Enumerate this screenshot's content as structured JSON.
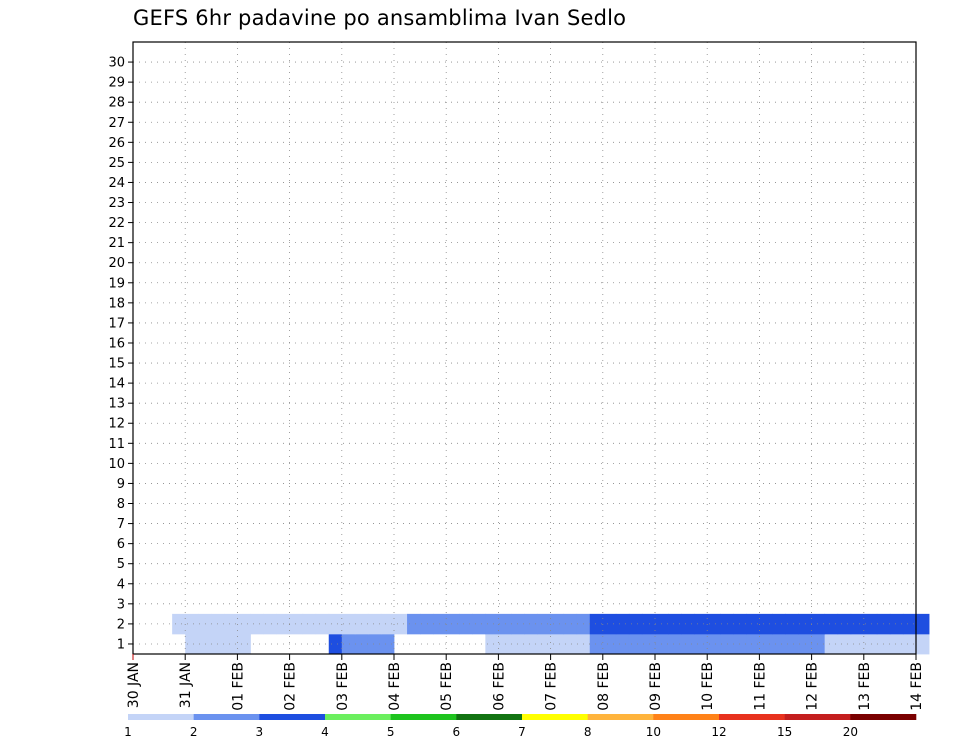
{
  "chart_data": {
    "type": "heatmap",
    "title": "GEFS 6hr padavine po ansamblima Ivan Sedlo",
    "xlabel": "",
    "ylabel": "",
    "x_tick_labels": [
      "30 JAN",
      "31 JAN",
      "01 FEB",
      "02 FEB",
      "03 FEB",
      "04 FEB",
      "05 FEB",
      "06 FEB",
      "07 FEB",
      "08 FEB",
      "09 FEB",
      "10 FEB",
      "11 FEB",
      "12 FEB",
      "13 FEB",
      "14 FEB"
    ],
    "members": [
      1,
      2,
      3,
      4,
      5,
      6,
      7,
      8,
      9,
      10,
      11,
      12,
      13,
      14,
      15,
      16,
      17,
      18,
      19,
      20,
      21,
      22,
      23,
      24,
      25,
      26,
      27,
      28,
      29,
      30
    ],
    "time_steps_per_day": 4,
    "grid": true,
    "legend": {
      "placement": "bottom",
      "boundaries": [
        "1",
        "2",
        "3",
        "4",
        "5",
        "6",
        "7",
        "8",
        "10",
        "12",
        "15",
        "20"
      ],
      "colors": [
        "#c4d4f7",
        "#6b92ef",
        "#1e4ee0",
        "#6bef5e",
        "#1ec41e",
        "#127312",
        "#ffff00",
        "#ffb43c",
        "#ff8218",
        "#e8321e",
        "#c41e1e",
        "#7a0000"
      ]
    },
    "cells": [
      [
        1,
        4,
        1
      ],
      [
        1,
        5,
        1
      ],
      [
        1,
        6,
        1
      ],
      [
        1,
        7,
        1
      ],
      [
        1,
        8,
        1
      ],
      [
        1,
        15,
        3
      ],
      [
        1,
        16,
        2
      ],
      [
        1,
        17,
        2
      ],
      [
        1,
        18,
        2
      ],
      [
        1,
        19,
        2
      ],
      [
        1,
        27,
        1
      ],
      [
        1,
        28,
        1
      ],
      [
        1,
        29,
        1
      ],
      [
        1,
        30,
        1
      ],
      [
        1,
        31,
        1
      ],
      [
        1,
        32,
        1
      ],
      [
        1,
        33,
        1
      ],
      [
        1,
        34,
        1
      ],
      [
        1,
        35,
        2
      ],
      [
        1,
        36,
        2
      ],
      [
        1,
        37,
        2
      ],
      [
        1,
        38,
        2
      ],
      [
        1,
        39,
        2
      ],
      [
        1,
        40,
        2
      ],
      [
        1,
        41,
        2
      ],
      [
        1,
        42,
        2
      ],
      [
        1,
        43,
        2
      ],
      [
        1,
        44,
        2
      ],
      [
        1,
        45,
        2
      ],
      [
        1,
        46,
        2
      ],
      [
        1,
        47,
        2
      ],
      [
        1,
        48,
        2
      ],
      [
        1,
        49,
        2
      ],
      [
        1,
        50,
        2
      ],
      [
        1,
        51,
        2
      ],
      [
        1,
        52,
        2
      ],
      [
        1,
        53,
        1
      ],
      [
        1,
        54,
        1
      ],
      [
        1,
        55,
        1
      ],
      [
        1,
        56,
        1
      ],
      [
        1,
        57,
        1
      ],
      [
        1,
        58,
        1
      ],
      [
        1,
        59,
        1
      ],
      [
        1,
        60,
        1
      ],
      [
        2,
        3,
        1
      ],
      [
        2,
        4,
        1
      ],
      [
        2,
        5,
        1
      ],
      [
        2,
        6,
        1
      ],
      [
        2,
        7,
        1
      ],
      [
        2,
        8,
        1
      ],
      [
        2,
        9,
        1
      ],
      [
        2,
        10,
        1
      ],
      [
        2,
        11,
        1
      ],
      [
        2,
        12,
        1
      ],
      [
        2,
        13,
        1
      ],
      [
        2,
        14,
        1
      ],
      [
        2,
        15,
        1
      ],
      [
        2,
        16,
        1
      ],
      [
        2,
        17,
        1
      ],
      [
        2,
        18,
        1
      ],
      [
        2,
        19,
        1
      ],
      [
        2,
        20,
        1
      ],
      [
        2,
        21,
        2
      ],
      [
        2,
        22,
        2
      ],
      [
        2,
        23,
        2
      ],
      [
        2,
        24,
        2
      ],
      [
        2,
        25,
        2
      ],
      [
        2,
        26,
        2
      ],
      [
        2,
        27,
        2
      ],
      [
        2,
        28,
        2
      ],
      [
        2,
        29,
        2
      ],
      [
        2,
        30,
        2
      ],
      [
        2,
        31,
        2
      ],
      [
        2,
        32,
        2
      ],
      [
        2,
        33,
        2
      ],
      [
        2,
        34,
        2
      ],
      [
        2,
        35,
        3
      ],
      [
        2,
        36,
        3
      ],
      [
        2,
        37,
        3
      ],
      [
        2,
        38,
        3
      ],
      [
        2,
        39,
        3
      ],
      [
        2,
        40,
        3
      ],
      [
        2,
        41,
        3
      ],
      [
        2,
        42,
        3
      ],
      [
        2,
        43,
        3
      ],
      [
        2,
        44,
        3
      ],
      [
        2,
        45,
        3
      ],
      [
        2,
        46,
        3
      ],
      [
        2,
        47,
        3
      ],
      [
        2,
        48,
        3
      ],
      [
        2,
        49,
        3
      ],
      [
        2,
        50,
        3
      ],
      [
        2,
        51,
        3
      ],
      [
        2,
        52,
        3
      ],
      [
        2,
        53,
        3
      ],
      [
        2,
        54,
        3
      ],
      [
        2,
        55,
        3
      ],
      [
        2,
        56,
        3
      ],
      [
        2,
        57,
        3
      ],
      [
        2,
        58,
        3
      ],
      [
        2,
        59,
        3
      ],
      [
        2,
        60,
        3
      ]
    ]
  }
}
